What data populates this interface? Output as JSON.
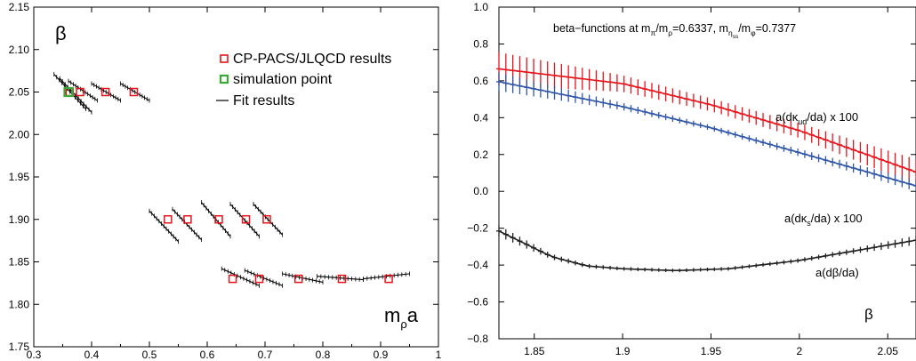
{
  "chart_data": [
    {
      "type": "scatter",
      "xlim": [
        0.3,
        1.0
      ],
      "ylim": [
        1.75,
        2.15
      ],
      "xticks": [
        "0.3",
        "0.4",
        "0.5",
        "0.6",
        "0.7",
        "0.8",
        "0.9",
        "1"
      ],
      "yticks": [
        "1.75",
        "1.80",
        "1.85",
        "1.90",
        "1.95",
        "2.00",
        "2.05",
        "2.10",
        "2.15"
      ],
      "ylabel": "β",
      "xlabel": "m",
      "xlabel_sub": "ρ",
      "xlabel_tail": "a",
      "legend": {
        "placement": "top-right",
        "items": [
          "CP-PACS/JLQCD results",
          "simulation point",
          "Fit results"
        ]
      },
      "colors": {
        "cp_pacs": "#e8141c",
        "simulation": "#3aaa35",
        "fit": "#000000"
      },
      "series": [
        {
          "name": "CP-PACS/JLQCD results",
          "points": [
            [
              0.362,
              2.05
            ],
            [
              0.38,
              2.05
            ],
            [
              0.424,
              2.05
            ],
            [
              0.473,
              2.05
            ],
            [
              0.532,
              1.9
            ],
            [
              0.566,
              1.9
            ],
            [
              0.62,
              1.9
            ],
            [
              0.667,
              1.9
            ],
            [
              0.703,
              1.9
            ],
            [
              0.644,
              1.83
            ],
            [
              0.69,
              1.83
            ],
            [
              0.758,
              1.83
            ],
            [
              0.833,
              1.83
            ],
            [
              0.914,
              1.83
            ]
          ]
        },
        {
          "name": "simulation point",
          "points": [
            [
              0.36,
              2.05
            ]
          ]
        },
        {
          "name": "Fit results",
          "segments": [
            [
              [
                0.335,
                2.071
              ],
              [
                0.39,
                2.03
              ]
            ],
            [
              [
                0.345,
                2.066
              ],
              [
                0.4,
                2.026
              ]
            ],
            [
              [
                0.36,
                2.063
              ],
              [
                0.41,
                2.04
              ]
            ],
            [
              [
                0.4,
                2.06
              ],
              [
                0.45,
                2.04
              ]
            ],
            [
              [
                0.45,
                2.06
              ],
              [
                0.5,
                2.04
              ]
            ],
            [
              [
                0.5,
                1.91
              ],
              [
                0.55,
                1.874
              ]
            ],
            [
              [
                0.54,
                1.912
              ],
              [
                0.59,
                1.876
              ]
            ],
            [
              [
                0.59,
                1.92
              ],
              [
                0.64,
                1.88
              ]
            ],
            [
              [
                0.64,
                1.918
              ],
              [
                0.69,
                1.88
              ]
            ],
            [
              [
                0.68,
                1.918
              ],
              [
                0.73,
                1.882
              ]
            ],
            [
              [
                0.625,
                1.842
              ],
              [
                0.69,
                1.822
              ]
            ],
            [
              [
                0.665,
                1.84
              ],
              [
                0.73,
                1.822
              ]
            ],
            [
              [
                0.73,
                1.836
              ],
              [
                0.8,
                1.826
              ]
            ],
            [
              [
                0.79,
                1.833
              ],
              [
                0.87,
                1.829
              ]
            ],
            [
              [
                0.87,
                1.83
              ],
              [
                0.95,
                1.836
              ]
            ]
          ]
        }
      ]
    },
    {
      "type": "line",
      "title": "beta−functions at m",
      "title_parts": [
        "π",
        "/m",
        "ρ",
        "=0.6337, m",
        "η",
        "ss",
        "/m",
        "φ",
        "=0.7377"
      ],
      "xlim": [
        1.83,
        2.066
      ],
      "ylim": [
        -0.8,
        1.0
      ],
      "xticks": [
        "1.85",
        "1.9",
        "1.95",
        "2",
        "2.05"
      ],
      "yticks": [
        "−0.8",
        "−0.6",
        "−0.4",
        "−0.2",
        "0.0",
        "0.2",
        "0.4",
        "0.6",
        "0.8",
        "1.0"
      ],
      "xlabel": "β",
      "series": [
        {
          "name": "a(dκud/da) x 100",
          "label_parts": [
            "a(dκ",
            "ud",
            "/da) x 100"
          ],
          "color": "#e8141c",
          "x": [
            1.83,
            1.9,
            1.95,
            2.0,
            2.066
          ],
          "y": [
            0.665,
            0.585,
            0.47,
            0.33,
            0.105
          ],
          "err": [
            0.09,
            0.045,
            0.035,
            0.04,
            0.07
          ]
        },
        {
          "name": "a(dκs/da) x 100",
          "label_parts": [
            "a(dκ",
            "s",
            "/da) x 100"
          ],
          "color": "#2f56a8",
          "x": [
            1.83,
            1.9,
            1.95,
            2.0,
            2.066
          ],
          "y": [
            0.595,
            0.46,
            0.345,
            0.21,
            0.03
          ],
          "err": [
            0.05,
            0.02,
            0.015,
            0.02,
            0.03
          ]
        },
        {
          "name": "a(dβ/da)",
          "label_parts": [
            "a(dβ/da)"
          ],
          "color": "#222222",
          "x": [
            1.83,
            1.86,
            1.88,
            1.9,
            1.93,
            1.96,
            2.0,
            2.03,
            2.066
          ],
          "y": [
            -0.215,
            -0.355,
            -0.405,
            -0.42,
            -0.43,
            -0.42,
            -0.375,
            -0.325,
            -0.265
          ],
          "err": [
            0.03,
            0.015,
            0.012,
            0.01,
            0.01,
            0.01,
            0.012,
            0.015,
            0.025
          ]
        }
      ]
    }
  ]
}
